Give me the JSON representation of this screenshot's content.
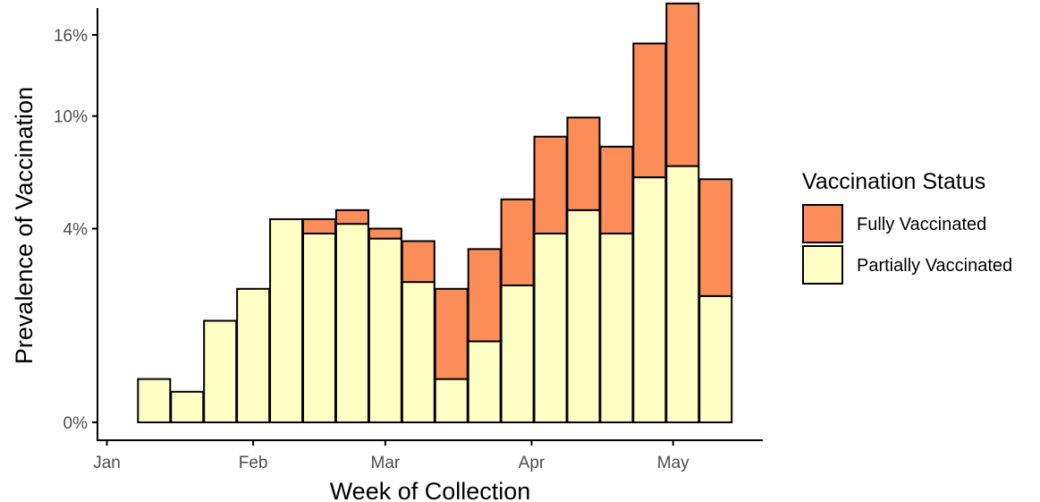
{
  "chart_data": {
    "type": "bar",
    "stacked": true,
    "title": "",
    "xlabel": "Week of Collection",
    "ylabel": "Prevalence of Vaccination",
    "x_ticks": [
      {
        "label": "Jan",
        "date": "2021-01-01"
      },
      {
        "label": "Feb",
        "date": "2021-02-01"
      },
      {
        "label": "Mar",
        "date": "2021-03-01"
      },
      {
        "label": "Apr",
        "date": "2021-04-01"
      },
      {
        "label": "May",
        "date": "2021-05-01"
      }
    ],
    "x_range": [
      "2020-12-30",
      "2021-05-20"
    ],
    "y_ticks": [
      {
        "label": "0%",
        "value": 0
      },
      {
        "label": "4%",
        "value": 4
      },
      {
        "label": "10%",
        "value": 10
      },
      {
        "label": "16%",
        "value": 16
      }
    ],
    "y_scale": "sqrt",
    "ylim": [
      0,
      19
    ],
    "grid": false,
    "legend": {
      "title": "Vaccination Status",
      "position": "right",
      "entries": [
        {
          "name": "Fully Vaccinated",
          "color": "#FC8D59"
        },
        {
          "name": "Partially Vaccinated",
          "color": "#FFFFC5"
        }
      ]
    },
    "weeks": [
      "2021-01-11",
      "2021-01-18",
      "2021-01-25",
      "2021-02-01",
      "2021-02-08",
      "2021-02-15",
      "2021-02-22",
      "2021-03-01",
      "2021-03-08",
      "2021-03-15",
      "2021-03-22",
      "2021-03-29",
      "2021-04-05",
      "2021-04-12",
      "2021-04-19",
      "2021-04-26",
      "2021-05-03",
      "2021-05-10"
    ],
    "series": [
      {
        "name": "Partially Vaccinated",
        "color": "#FFFFC5",
        "values": [
          0.2,
          0.1,
          1.1,
          1.9,
          4.4,
          3.8,
          4.2,
          3.6,
          2.1,
          0.2,
          0.7,
          2.0,
          3.8,
          4.8,
          3.8,
          6.4,
          7.0,
          1.7
        ]
      },
      {
        "name": "Fully Vaccinated",
        "color": "#FC8D59",
        "values": [
          0.0,
          0.0,
          0.0,
          0.0,
          0.0,
          0.6,
          0.6,
          0.4,
          1.4,
          1.7,
          2.5,
          3.3,
          4.9,
          5.1,
          4.3,
          8.9,
          11.7,
          4.6
        ]
      }
    ]
  }
}
